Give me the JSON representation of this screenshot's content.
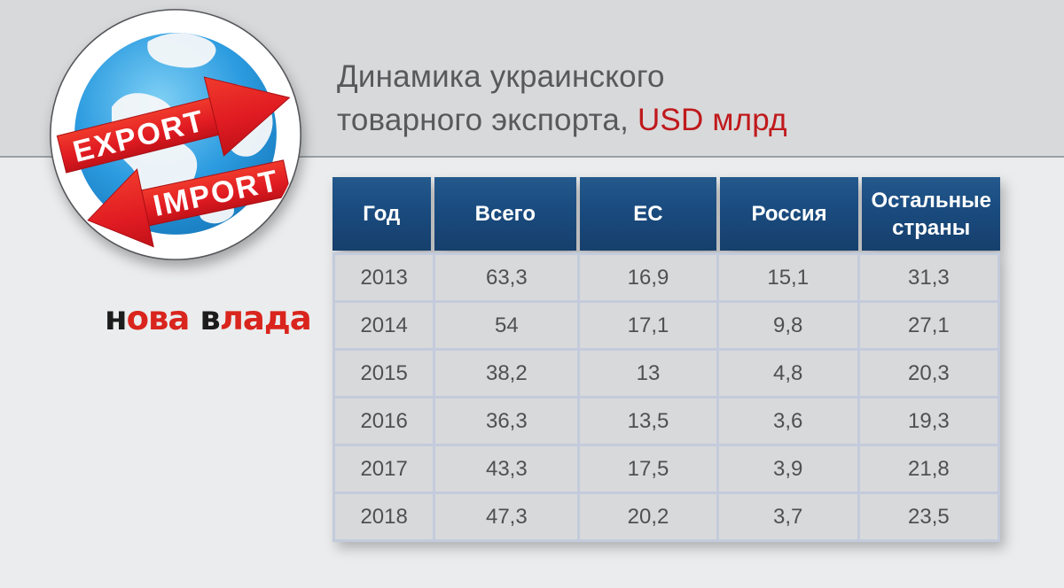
{
  "theme": {
    "bg_top": "#d8d9da",
    "bg_main": "#ebeced",
    "divider": "#9aa0a5",
    "header_bg": "#1a4c80",
    "cell_bg": "#d8d9da",
    "grid_border": "#c3cbdc",
    "cell_text": "#4f5052",
    "title_gray": "#58595b",
    "accent_red": "#c0191c",
    "brand_red": "#d9251d",
    "ribbon_red": "#e01b22"
  },
  "header": {
    "title_line1": "Динамика украинского",
    "title_line2_gray": "товарного экспорта, ",
    "title_line2_red": "USD млрд"
  },
  "logo": {
    "export_label": "EXPORT",
    "import_label": "IMPORT"
  },
  "brand": {
    "word1_first": "н",
    "word1_rest": "ова",
    "word2_first": "в",
    "word2_rest": "лада"
  },
  "table": {
    "columns": [
      "Год",
      "Всего",
      "ЕС",
      "Россия",
      "Остальные страны"
    ],
    "rows": [
      [
        "2013",
        "63,3",
        "16,9",
        "15,1",
        "31,3"
      ],
      [
        "2014",
        "54",
        "17,1",
        "9,8",
        "27,1"
      ],
      [
        "2015",
        "38,2",
        "13",
        "4,8",
        "20,3"
      ],
      [
        "2016",
        "36,3",
        "13,5",
        "3,6",
        "19,3"
      ],
      [
        "2017",
        "43,3",
        "17,5",
        "3,9",
        "21,8"
      ],
      [
        "2018",
        "47,3",
        "20,2",
        "3,7",
        "23,5"
      ]
    ]
  },
  "chart_data": {
    "type": "table",
    "title": "Динамика украинского товарного экспорта, USD млрд",
    "categories": [
      "2013",
      "2014",
      "2015",
      "2016",
      "2017",
      "2018"
    ],
    "series": [
      {
        "name": "Всего",
        "values": [
          63.3,
          54,
          38.2,
          36.3,
          43.3,
          47.3
        ]
      },
      {
        "name": "ЕС",
        "values": [
          16.9,
          17.1,
          13,
          13.5,
          17.5,
          20.2
        ]
      },
      {
        "name": "Россия",
        "values": [
          15.1,
          9.8,
          4.8,
          3.6,
          3.9,
          3.7
        ]
      },
      {
        "name": "Остальные страны",
        "values": [
          31.3,
          27.1,
          20.3,
          19.3,
          21.8,
          23.5
        ]
      }
    ]
  }
}
